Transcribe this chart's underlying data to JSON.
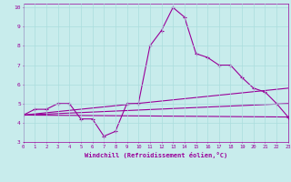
{
  "xlabel": "Windchill (Refroidissement éolien,°C)",
  "bg_color": "#c8ecec",
  "line_color": "#990099",
  "xlim": [
    0,
    23
  ],
  "ylim": [
    3,
    10.2
  ],
  "xticks": [
    0,
    1,
    2,
    3,
    4,
    5,
    6,
    7,
    8,
    9,
    10,
    11,
    12,
    13,
    14,
    15,
    16,
    17,
    18,
    19,
    20,
    21,
    22,
    23
  ],
  "yticks": [
    3,
    4,
    5,
    6,
    7,
    8,
    9,
    10
  ],
  "series1_x": [
    0,
    1,
    2,
    3,
    4,
    5,
    6,
    7,
    8,
    9,
    10,
    11,
    12,
    13,
    14,
    15,
    16,
    17,
    18,
    19,
    20,
    21,
    22,
    23
  ],
  "series1_y": [
    4.4,
    4.7,
    4.7,
    5.0,
    5.0,
    4.2,
    4.2,
    3.3,
    3.55,
    5.0,
    5.0,
    8.0,
    8.8,
    10.0,
    9.5,
    7.6,
    7.4,
    7.0,
    7.0,
    6.35,
    5.8,
    5.6,
    5.0,
    4.3
  ],
  "series2_x": [
    0,
    23
  ],
  "series2_y": [
    4.4,
    5.8
  ],
  "series3_x": [
    0,
    23
  ],
  "series3_y": [
    4.4,
    5.0
  ],
  "series4_x": [
    0,
    23
  ],
  "series4_y": [
    4.4,
    4.3
  ],
  "grid_color": "#aadddd",
  "marker": "+"
}
